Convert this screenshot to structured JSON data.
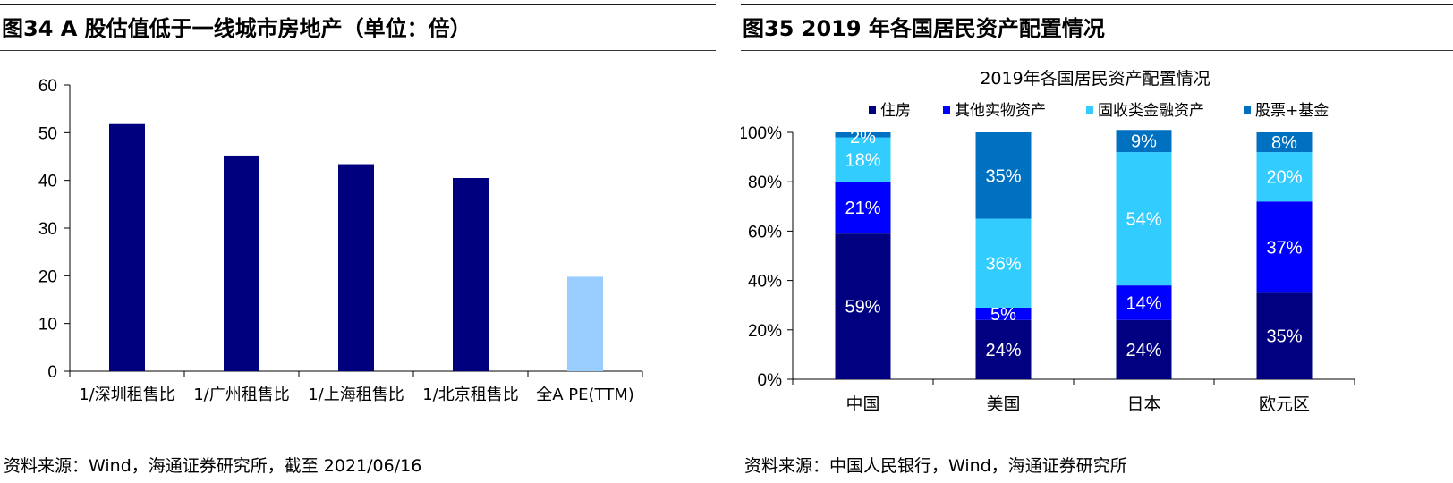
{
  "left": {
    "figure_title": "图34  A 股估值低于一线城市房地产（单位：倍）",
    "source": "资料来源：Wind，海通证券研究所，截至 2021/06/16",
    "chart_data": {
      "type": "bar",
      "categories": [
        "1/深圳租售比",
        "1/广州租售比",
        "1/上海租售比",
        "1/北京租售比",
        "全A PE(TTM)"
      ],
      "values": [
        51.8,
        45.2,
        43.4,
        40.5,
        19.8
      ],
      "bar_colors": [
        "#00007f",
        "#00007f",
        "#00007f",
        "#00007f",
        "#99ccff"
      ],
      "ylim": [
        0,
        60
      ],
      "yticks": [
        0,
        10,
        20,
        30,
        40,
        50,
        60
      ],
      "grid": false,
      "legend": false
    }
  },
  "right": {
    "figure_title": "图35  2019 年各国居民资产配置情况",
    "source": "资料来源：中国人民银行，Wind，海通证券研究所",
    "chart_data": {
      "type": "bar",
      "stacked": true,
      "title": "2019年各国居民资产配置情况",
      "categories": [
        "中国",
        "美国",
        "日本",
        "欧元区"
      ],
      "series": [
        {
          "name": "住房",
          "color": "#000080",
          "values": [
            59,
            24,
            24,
            35
          ],
          "labels": [
            "59%",
            "24%",
            "24%",
            "35%"
          ]
        },
        {
          "name": "其他实物资产",
          "color": "#0000ff",
          "values": [
            21,
            5,
            14,
            37
          ],
          "labels": [
            "21%",
            "5%",
            "14%",
            "37%"
          ]
        },
        {
          "name": "固收类金融资产",
          "color": "#33ccff",
          "values": [
            18,
            36,
            54,
            20
          ],
          "labels": [
            "18%",
            "36%",
            "54%",
            "20%"
          ]
        },
        {
          "name": "股票+基金",
          "color": "#0070c0",
          "values": [
            2,
            35,
            9,
            8
          ],
          "labels": [
            "2%",
            "35%",
            "9%",
            "8%"
          ]
        }
      ],
      "ylim": [
        0,
        100
      ],
      "yticks": [
        "0%",
        "20%",
        "40%",
        "60%",
        "80%",
        "100%"
      ],
      "legend": "top",
      "grid": false
    }
  }
}
